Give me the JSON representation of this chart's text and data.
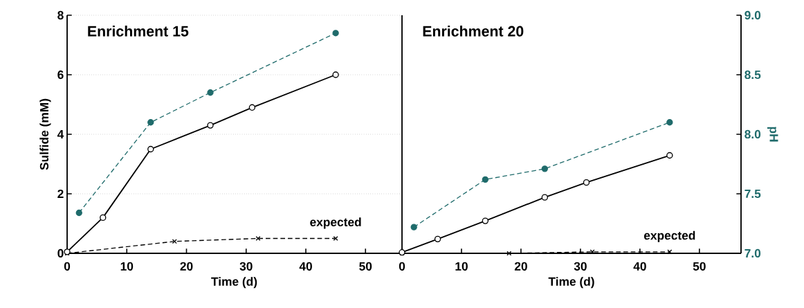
{
  "chart_data": [
    {
      "type": "line",
      "title": "Enrichment 15",
      "xlabel": "Time (d)",
      "ylabel": "Sulfide (mM)",
      "xlim": [
        0,
        56
      ],
      "xticks": [
        0,
        10,
        20,
        30,
        40,
        50
      ],
      "ylim": [
        0,
        8
      ],
      "yticks": [
        0,
        2,
        4,
        6,
        8
      ],
      "y2lim": [
        7,
        9
      ],
      "tick_labels": [
        "x",
        "y"
      ],
      "grid": "y",
      "series": [
        {
          "color": "#000000",
          "marker": "circle",
          "line_style": "solid",
          "x": [
            0,
            6,
            14,
            24,
            31,
            45
          ],
          "values": [
            0.05,
            1.2,
            3.5,
            4.3,
            4.9,
            6.0
          ]
        },
        {
          "color": "#1f6b6b",
          "marker": "circle",
          "line_style": "dashed",
          "axis": "y2",
          "x": [
            2,
            14,
            24,
            45
          ],
          "values": [
            7.34,
            8.1,
            8.35,
            8.85
          ]
        },
        {
          "color": "#000000",
          "marker": "cross",
          "line_style": "dashed",
          "x": [
            0,
            18,
            32,
            45
          ],
          "values": [
            0,
            0.4,
            0.5,
            0.5
          ]
        }
      ],
      "annotations": [
        {
          "text": "expected",
          "x": 45,
          "y": 0.5
        }
      ]
    },
    {
      "type": "line",
      "title": "Enrichment 20",
      "xlabel": "Time (d)",
      "y2label": "pH",
      "xlim": [
        0,
        57
      ],
      "xticks": [
        0,
        10,
        20,
        30,
        40,
        50
      ],
      "ylim": [
        0,
        8
      ],
      "y2lim": [
        7,
        9
      ],
      "y2ticks": [
        {
          "value": 7,
          "label": "7.0"
        },
        {
          "value": 7.5,
          "label": "7.5"
        },
        {
          "value": 8,
          "label": "8.0"
        },
        {
          "value": 8.5,
          "label": "8.5"
        },
        {
          "value": 9,
          "label": "9.0"
        }
      ],
      "tick_labels": [
        "x",
        "y2"
      ],
      "grid": "y",
      "series": [
        {
          "color": "#000000",
          "marker": "circle",
          "line_style": "solid",
          "x": [
            0,
            6,
            14,
            24,
            31,
            45
          ],
          "values": [
            0.03,
            0.48,
            1.09,
            1.88,
            2.38,
            3.29
          ]
        },
        {
          "color": "#1f6b6b",
          "marker": "circle",
          "line_style": "dashed",
          "axis": "y2",
          "x": [
            2,
            14,
            24,
            45
          ],
          "values": [
            7.22,
            7.62,
            7.71,
            8.1
          ]
        },
        {
          "color": "#000000",
          "marker": "cross",
          "line_style": "dashed",
          "x": [
            0,
            18,
            32,
            45
          ],
          "values": [
            0,
            0,
            0.05,
            0.05
          ]
        }
      ],
      "annotations": [
        {
          "text": "expected",
          "x": 45,
          "y": 0.05
        }
      ]
    }
  ]
}
